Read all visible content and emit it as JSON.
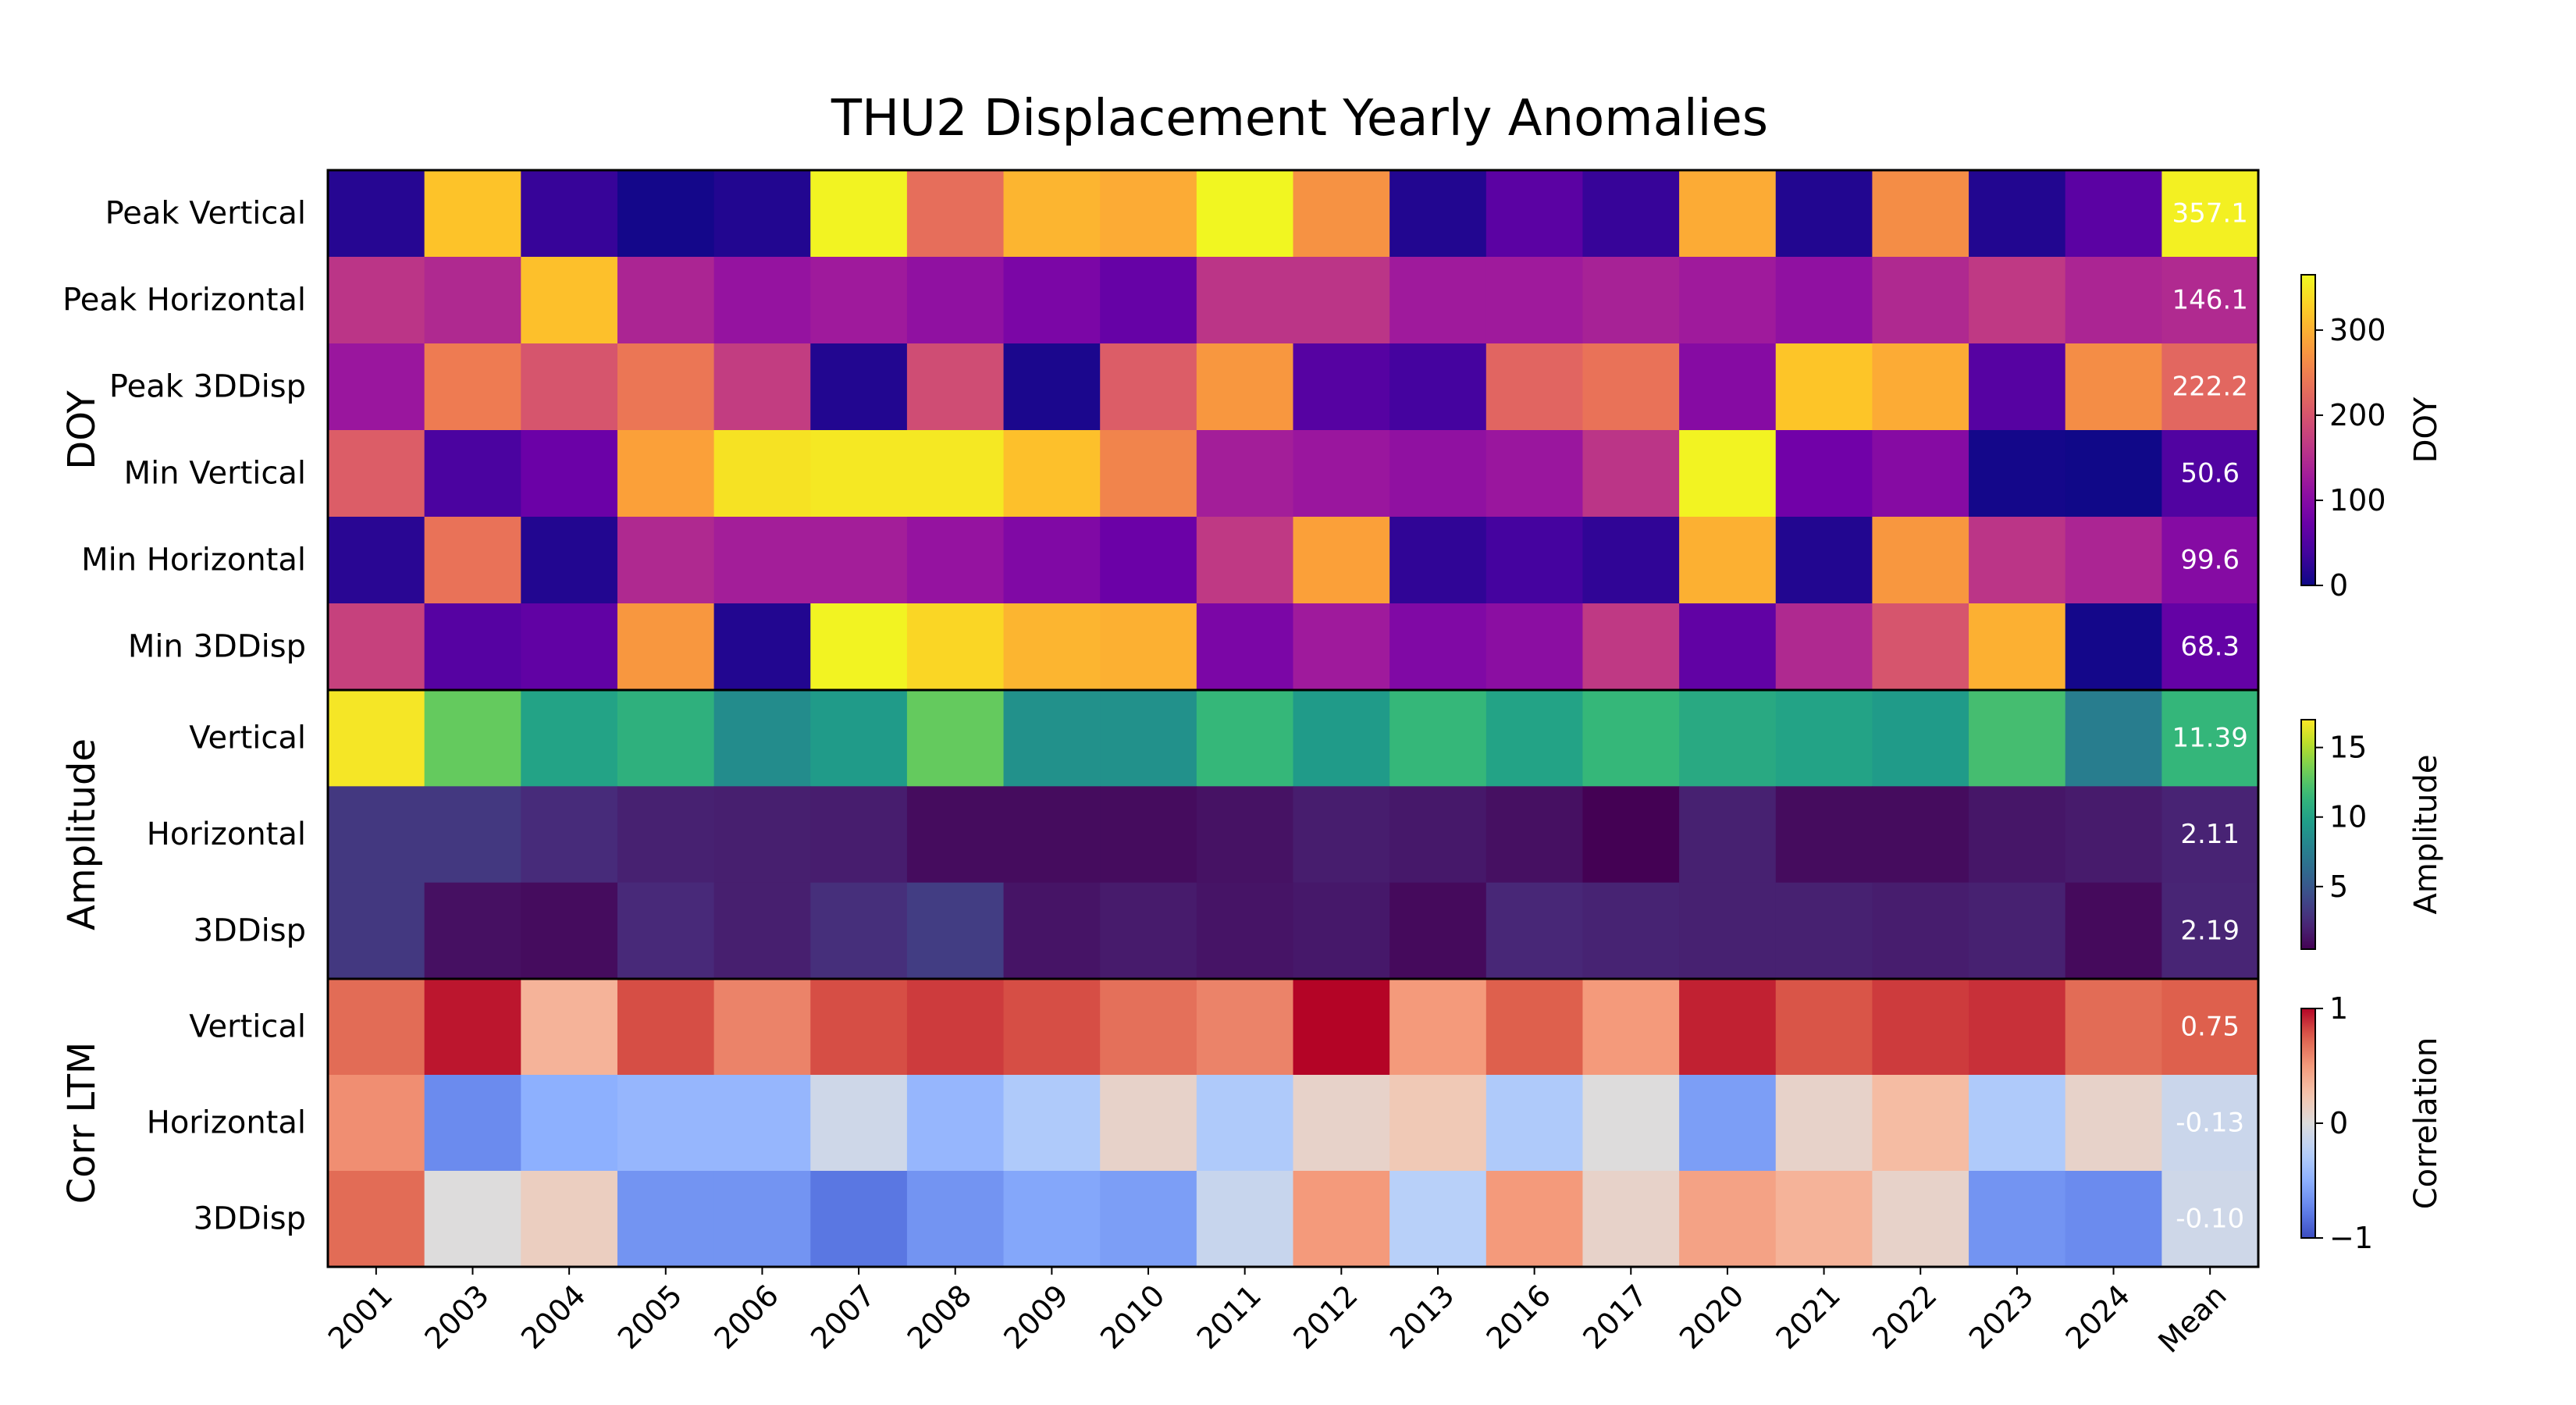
{
  "chart_data": {
    "type": "heatmap",
    "title": "THU2 Displacement Yearly Anomalies",
    "x": [
      "2001",
      "2003",
      "2004",
      "2005",
      "2006",
      "2007",
      "2008",
      "2009",
      "2010",
      "2011",
      "2012",
      "2013",
      "2016",
      "2017",
      "2020",
      "2021",
      "2022",
      "2023",
      "2024",
      "Mean"
    ],
    "panels": [
      {
        "name": "DOY",
        "colormap": "plasma",
        "range": [
          0,
          365
        ],
        "colorbar_label": "DOY",
        "colorbar_ticks": [
          0,
          100,
          200,
          300
        ],
        "rows": [
          {
            "label": "Peak Vertical",
            "values": [
              18,
              318,
              30,
              5,
              15,
              360,
              230,
              305,
              295,
              362,
              270,
              15,
              60,
              30,
              295,
              15,
              265,
              15,
              60,
              357.1
            ]
          },
          {
            "label": "Peak Horizontal",
            "values": [
              160,
              145,
              315,
              140,
              115,
              125,
              110,
              90,
              70,
              160,
              160,
              125,
              125,
              135,
              125,
              110,
              145,
              165,
              140,
              146.1
            ]
          },
          {
            "label": "Peak 3DDisp",
            "values": [
              120,
              245,
              200,
              240,
              170,
              15,
              190,
              10,
              210,
              275,
              55,
              40,
              220,
              235,
              100,
              320,
              295,
              55,
              265,
              222.2
            ]
          },
          {
            "label": "Min Vertical",
            "values": [
              210,
              45,
              75,
              285,
              345,
              350,
              350,
              315,
              255,
              130,
              120,
              110,
              120,
              160,
              360,
              80,
              100,
              5,
              2,
              50.6
            ]
          },
          {
            "label": "Min Horizontal",
            "values": [
              20,
              235,
              15,
              145,
              130,
              130,
              115,
              95,
              75,
              165,
              285,
              25,
              40,
              25,
              300,
              15,
              275,
              160,
              140,
              99.6
            ]
          },
          {
            "label": "Min 3DDisp",
            "values": [
              175,
              55,
              65,
              275,
              15,
              360,
              335,
              305,
              300,
              90,
              125,
              95,
              105,
              165,
              65,
              145,
              200,
              300,
              5,
              68.3
            ]
          }
        ],
        "mean_labels": [
          "357.1",
          "146.1",
          "222.2",
          "50.6",
          "99.6",
          "68.3"
        ]
      },
      {
        "name": "Amplitude",
        "colormap": "viridis",
        "range": [
          0.5,
          17
        ],
        "colorbar_label": "Amplitude",
        "colorbar_ticks": [
          5,
          10,
          15
        ],
        "rows": [
          {
            "label": "Vertical",
            "values": [
              16.8,
              13.0,
              10.0,
              11.0,
              8.5,
              9.5,
              13.0,
              8.8,
              8.8,
              11.5,
              9.5,
              11.5,
              10.0,
              11.5,
              10.5,
              10.0,
              9.5,
              12.0,
              7.5,
              11.39
            ]
          },
          {
            "label": "Horizontal",
            "values": [
              3.2,
              3.2,
              2.5,
              2.0,
              1.9,
              1.8,
              1.0,
              1.0,
              1.0,
              1.3,
              1.8,
              1.6,
              1.2,
              0.5,
              2.0,
              1.0,
              1.0,
              1.5,
              1.7,
              2.11
            ]
          },
          {
            "label": "3DDisp",
            "values": [
              3.2,
              1.2,
              1.0,
              2.4,
              1.9,
              2.7,
              3.5,
              1.4,
              1.7,
              1.4,
              1.6,
              0.9,
              2.3,
              2.1,
              2.0,
              2.0,
              1.8,
              2.0,
              0.9,
              2.19
            ]
          }
        ],
        "mean_labels": [
          "11.39",
          "2.11",
          "2.19"
        ]
      },
      {
        "name": "Corr LTM",
        "colormap": "coolwarm",
        "range": [
          -1,
          1
        ],
        "colorbar_label": "Correlation",
        "colorbar_ticks": [
          -1,
          0,
          1
        ],
        "rows": [
          {
            "label": "Vertical",
            "values": [
              0.7,
              0.95,
              0.35,
              0.8,
              0.6,
              0.8,
              0.85,
              0.8,
              0.68,
              0.6,
              1.0,
              0.5,
              0.75,
              0.5,
              0.92,
              0.78,
              0.85,
              0.88,
              0.7,
              0.75
            ]
          },
          {
            "label": "Horizontal",
            "values": [
              0.55,
              -0.7,
              -0.5,
              -0.45,
              -0.45,
              -0.1,
              -0.45,
              -0.3,
              0.1,
              -0.3,
              0.1,
              0.2,
              -0.3,
              0.0,
              -0.6,
              0.1,
              0.3,
              -0.3,
              0.1,
              -0.13
            ]
          },
          {
            "label": "3DDisp",
            "values": [
              0.7,
              0.0,
              0.15,
              -0.65,
              -0.65,
              -0.8,
              -0.65,
              -0.55,
              -0.6,
              -0.15,
              0.5,
              -0.25,
              0.5,
              0.1,
              0.45,
              0.35,
              0.1,
              -0.65,
              -0.7,
              -0.1
            ]
          }
        ],
        "mean_labels": [
          "0.75",
          "-0.13",
          "-0.10"
        ]
      }
    ]
  }
}
